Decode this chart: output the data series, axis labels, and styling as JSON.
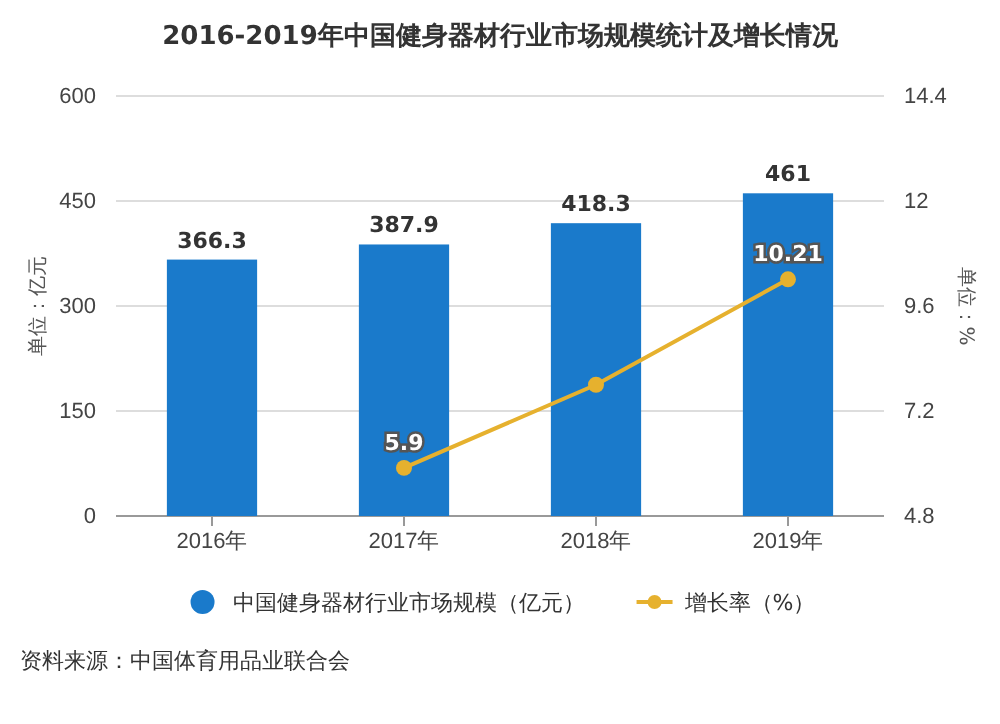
{
  "chart_data": {
    "type": "bar",
    "title": "2016-2019年中国健身器材行业市场规模统计及增长情况",
    "ylabel": "单位：亿元",
    "y2label": "单位：%",
    "categories": [
      "2016年",
      "2017年",
      "2018年",
      "2019年"
    ],
    "series": [
      {
        "name": "中国健身器材行业市场规模（亿元）",
        "color": "#1a7acb",
        "values": [
          366.3,
          387.9,
          418.3,
          461
        ],
        "value_labels": [
          "366.3",
          "387.9",
          "418.3",
          "461"
        ]
      },
      {
        "name": "增长率（%）",
        "type": "line",
        "axis": "y2",
        "color": "#e6b12e",
        "marker": "circle",
        "values": [
          null,
          5.9,
          7.8,
          10.21
        ],
        "value_labels": [
          null,
          "5.9",
          null,
          "10.21"
        ]
      }
    ],
    "ylim": [
      0,
      600
    ],
    "yticks": [
      0,
      150,
      300,
      450,
      600
    ],
    "y2lim": [
      4.8,
      14.4
    ],
    "y2ticks": [
      4.8,
      7.2,
      9.6,
      12,
      14.4
    ],
    "grid": "y",
    "legend": "bottom",
    "annotations": [
      "资料来源：中国体育用品业联合会"
    ]
  }
}
